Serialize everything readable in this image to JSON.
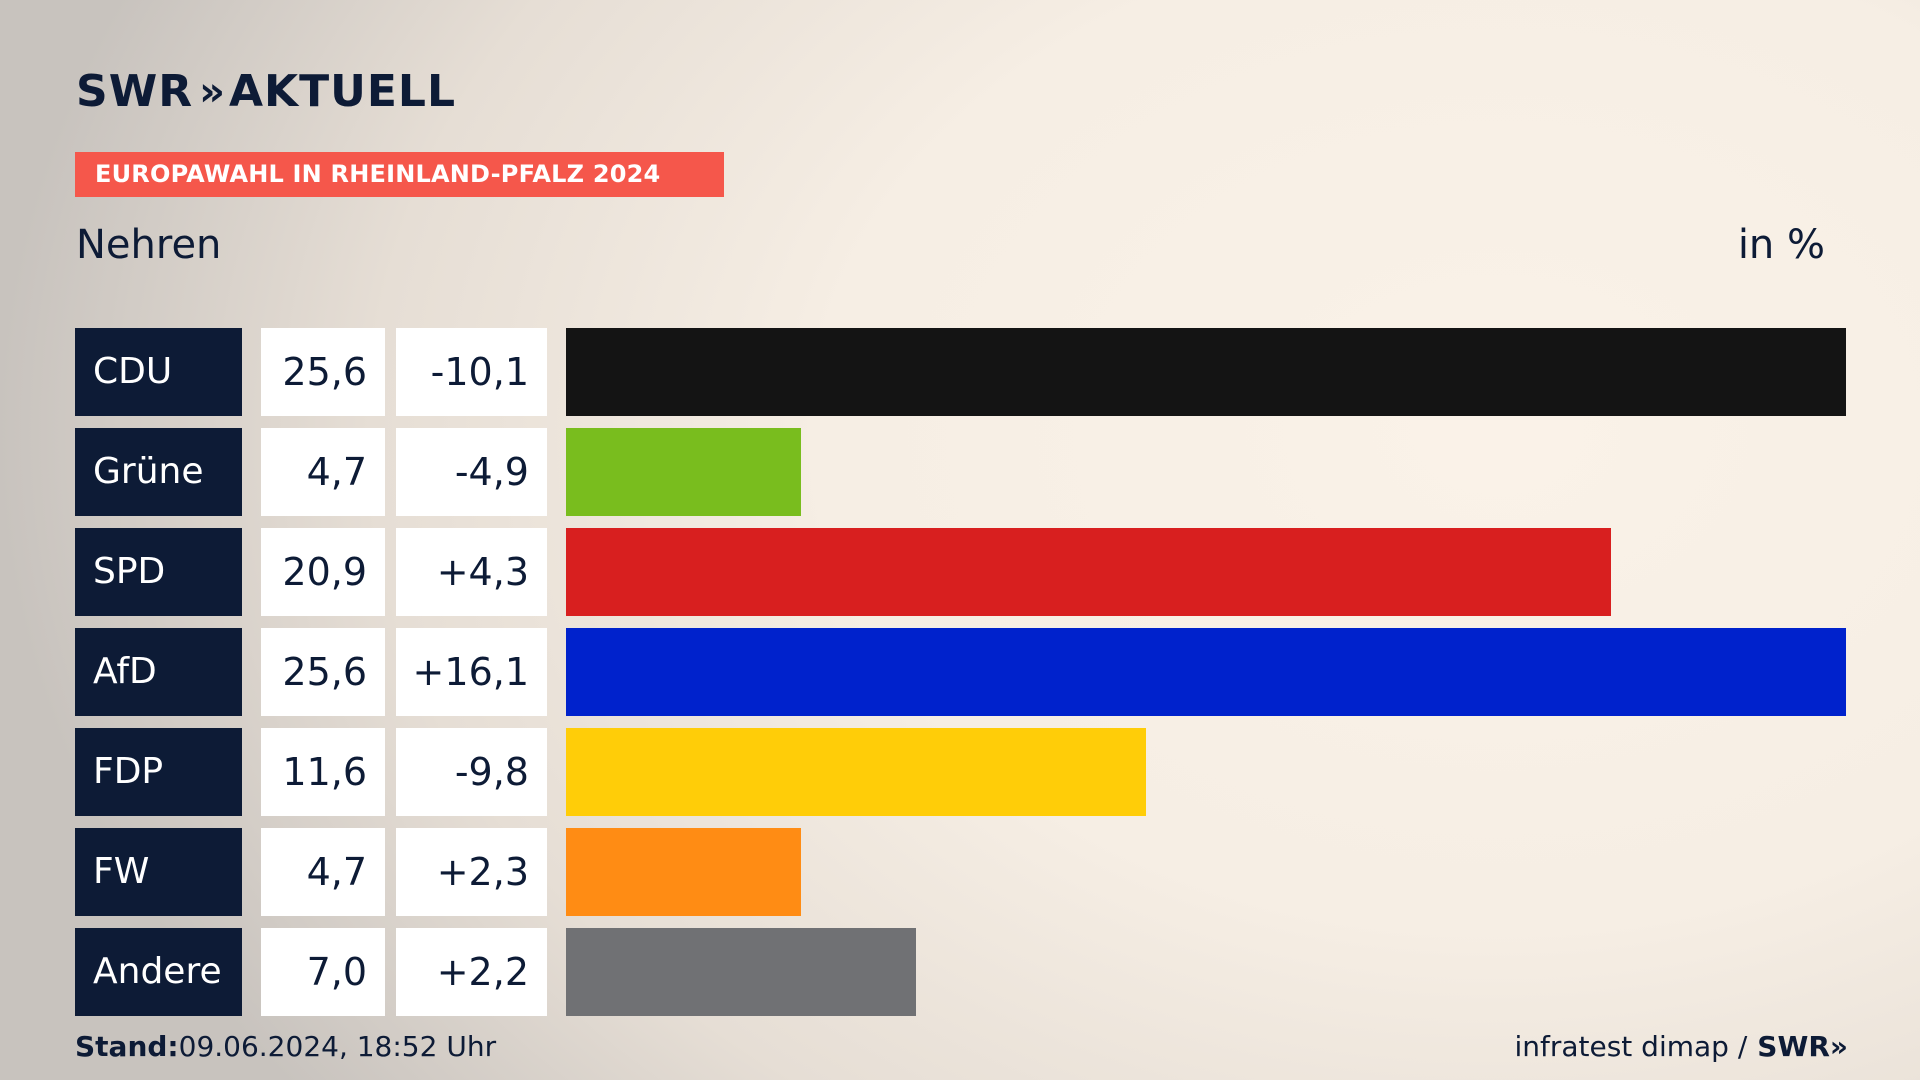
{
  "header": {
    "logo": {
      "brand": "SWR",
      "chevrons": "»",
      "product": "AKTUELL"
    },
    "tag": "EUROPAWAHL IN RHEINLAND-PFALZ 2024",
    "place": "Nehren",
    "unit": "in %"
  },
  "chart_data": {
    "type": "bar",
    "orientation": "horizontal",
    "categories": [
      "CDU",
      "Grüne",
      "SPD",
      "AfD",
      "FDP",
      "FW",
      "Andere"
    ],
    "values": [
      25.6,
      4.7,
      20.9,
      25.6,
      11.6,
      4.7,
      7.0
    ],
    "value_labels": [
      "25,6",
      "4,7",
      "20,9",
      "25,6",
      "11,6",
      "4,7",
      "7,0"
    ],
    "diff_labels": [
      "-10,1",
      "-4,9",
      "+4,3",
      "+16,1",
      "-9,8",
      "+2,3",
      "+2,2"
    ],
    "diffs": [
      -10.1,
      -4.9,
      4.3,
      16.1,
      -9.8,
      2.3,
      2.2
    ],
    "colors": [
      "#141414",
      "#79bd1e",
      "#d81f1f",
      "#0022cc",
      "#ffcd08",
      "#ff8c14",
      "#707174"
    ],
    "xlim": [
      0,
      25.6
    ],
    "grid": false,
    "legend": "none"
  },
  "footer": {
    "stand_label": "Stand:",
    "stand_value": "09.06.2024, 18:52 Uhr",
    "source": "infratest dimap /",
    "source_brand": "SWR",
    "source_chevrons": "»"
  }
}
